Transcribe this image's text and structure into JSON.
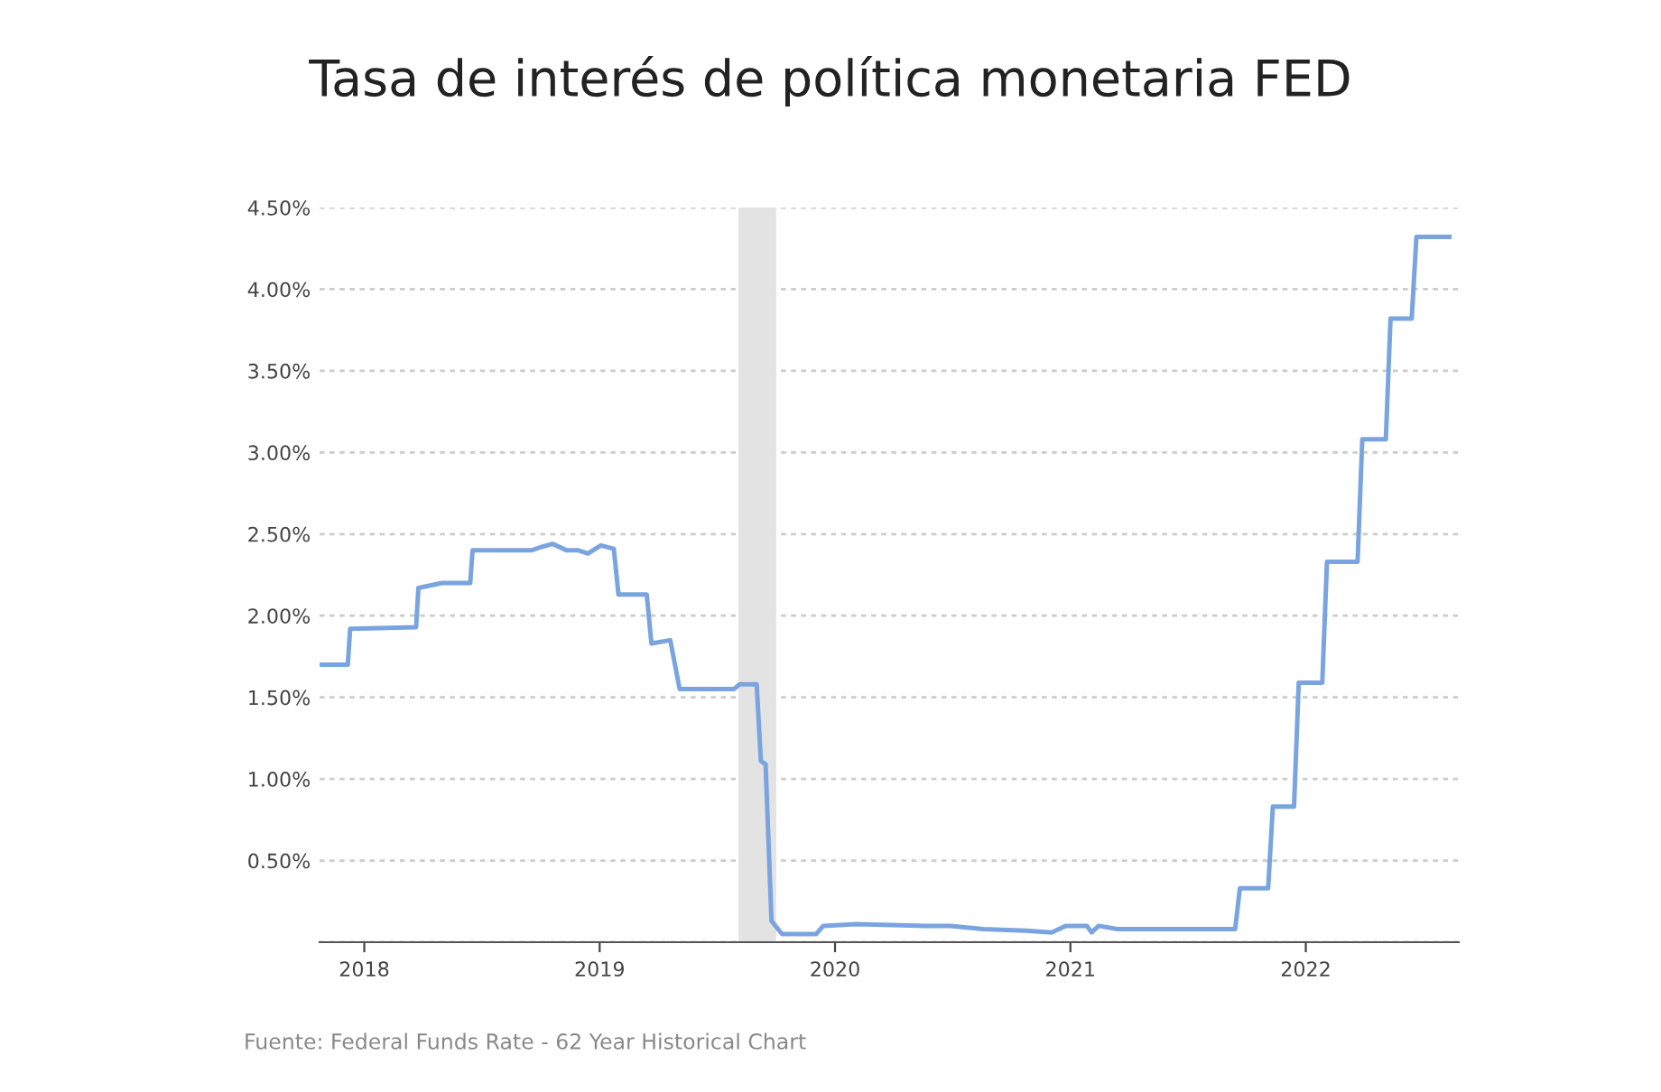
{
  "chart_data": {
    "type": "line",
    "title": "Tasa de interés de política monetaria FED",
    "x": [
      2017.82,
      2017.93,
      2017.94,
      2018.22,
      2018.23,
      2018.33,
      2018.45,
      2018.46,
      2018.71,
      2018.75,
      2018.8,
      2018.86,
      2018.91,
      2018.95,
      2019.005,
      2019.06,
      2019.08,
      2019.2,
      2019.22,
      2019.3,
      2019.34,
      2019.57,
      2019.595,
      2019.667,
      2019.685,
      2019.705,
      2019.73,
      2019.775,
      2019.92,
      2019.95,
      2020.09,
      2020.38,
      2020.49,
      2020.63,
      2020.81,
      2020.92,
      2020.98,
      2021.07,
      2021.09,
      2021.12,
      2021.2,
      2021.7,
      2021.72,
      2021.84,
      2021.86,
      2021.95,
      2021.97,
      2022.07,
      2022.09,
      2022.22,
      2022.24,
      2022.34,
      2022.36,
      2022.45,
      2022.47,
      2022.61
    ],
    "series": [
      {
        "color": "#79a4e0",
        "values": [
          1.7,
          1.7,
          1.92,
          1.93,
          2.17,
          2.2,
          2.2,
          2.4,
          2.4,
          2.42,
          2.44,
          2.4,
          2.4,
          2.38,
          2.43,
          2.41,
          2.13,
          2.13,
          1.83,
          1.85,
          1.55,
          1.55,
          1.58,
          1.58,
          1.11,
          1.09,
          0.13,
          0.05,
          0.05,
          0.1,
          0.11,
          0.1,
          0.1,
          0.08,
          0.07,
          0.06,
          0.1,
          0.1,
          0.06,
          0.1,
          0.08,
          0.08,
          0.33,
          0.33,
          0.83,
          0.83,
          1.59,
          1.59,
          2.33,
          2.33,
          3.08,
          3.08,
          3.82,
          3.82,
          4.32,
          4.32
        ]
      }
    ],
    "xlim": [
      2017.81,
      2022.65
    ],
    "xticks": [
      2018,
      2019,
      2020,
      2021,
      2022
    ],
    "ylim": [
      0,
      4.5
    ],
    "yticks": [
      {
        "value": 0,
        "label": null
      },
      {
        "value": 0.5,
        "label": "0.50%"
      },
      {
        "value": 1.0,
        "label": "1.00%"
      },
      {
        "value": 1.5,
        "label": "1.50%"
      },
      {
        "value": 2.0,
        "label": "2.00%"
      },
      {
        "value": 2.5,
        "label": "2.50%"
      },
      {
        "value": 3.0,
        "label": "3.00%"
      },
      {
        "value": 3.5,
        "label": "3.50%"
      },
      {
        "value": 4.0,
        "label": "4.00%"
      },
      {
        "value": 4.5,
        "label": "4.50%"
      }
    ],
    "bands": [
      {
        "axis": "x",
        "from": 2019.59,
        "to": 2019.75,
        "color": "#e3e3e3"
      }
    ],
    "grid": "y",
    "annotations": [
      "Fuente: Federal Funds Rate - 62 Year Historical Chart"
    ]
  }
}
